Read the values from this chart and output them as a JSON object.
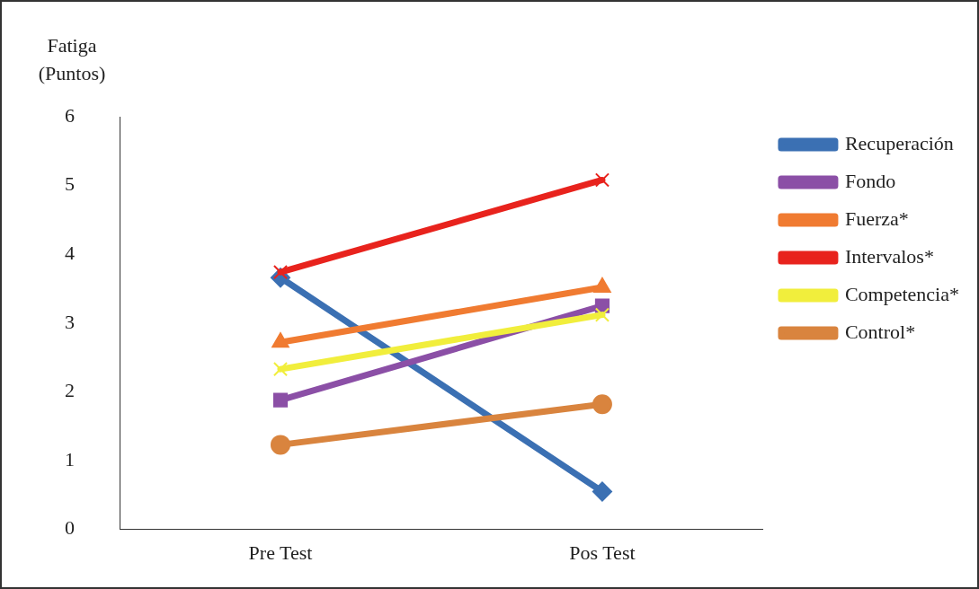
{
  "chart_data": {
    "type": "line",
    "ylabel": "Fatiga (Puntos)",
    "categories": [
      "Pre Test",
      "Pos Test"
    ],
    "ylim": [
      0,
      6
    ],
    "yticks": [
      0,
      1,
      2,
      3,
      4,
      5,
      6
    ],
    "grid": false,
    "legend": "right",
    "line_style": "solid",
    "series": [
      {
        "name": "Recuperación",
        "color": "#3b70b3",
        "marker": "diamond",
        "values": [
          3.66,
          0.55
        ]
      },
      {
        "name": "Fondo",
        "color": "#8b4fa6",
        "marker": "square",
        "values": [
          1.88,
          3.25
        ]
      },
      {
        "name": "Fuerza*",
        "color": "#f07b31",
        "marker": "triangle",
        "values": [
          2.72,
          3.52
        ]
      },
      {
        "name": "Intervalos*",
        "color": "#e8231d",
        "marker": "cross",
        "values": [
          3.74,
          5.08
        ]
      },
      {
        "name": "Competencia*",
        "color": "#f1ee3c",
        "marker": "cross",
        "values": [
          2.33,
          3.12
        ]
      },
      {
        "name": "Control*",
        "color": "#d9843e",
        "marker": "circle",
        "values": [
          1.23,
          1.82
        ]
      }
    ]
  }
}
